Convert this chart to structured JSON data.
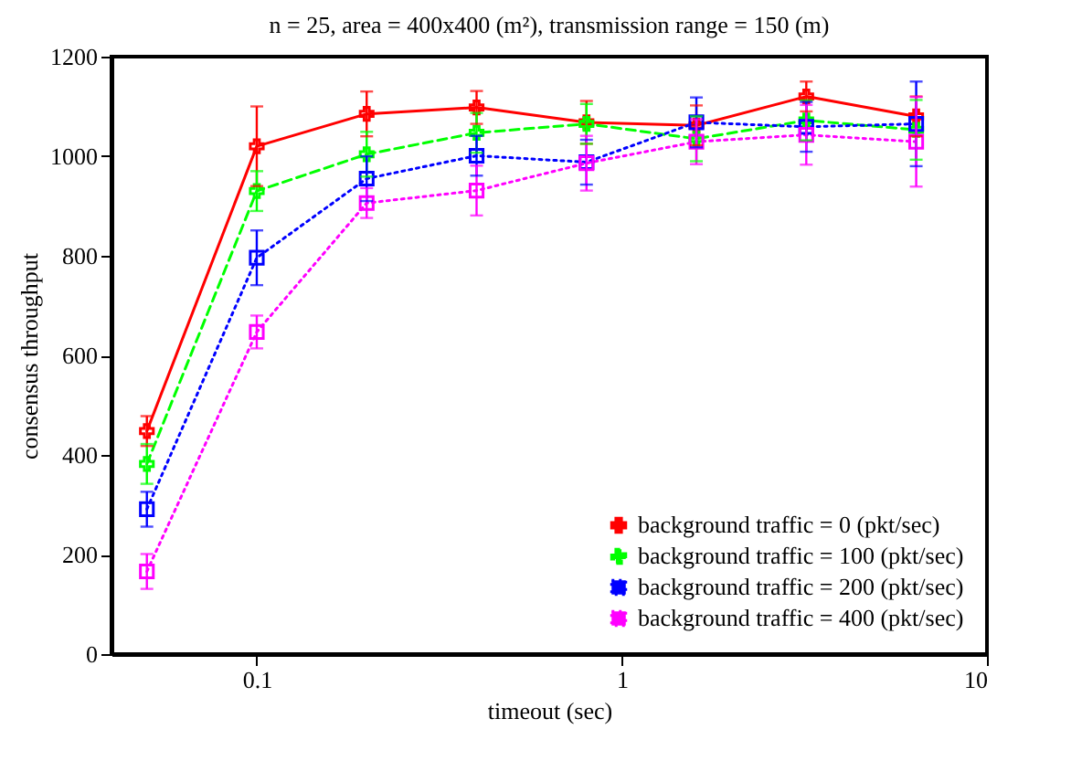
{
  "chart_data": {
    "type": "line",
    "title": "n = 25, area = 400x400 (m²), transmission range = 150 (m)",
    "xlabel": "timeout (sec)",
    "ylabel": "consensus throughput",
    "x": [
      0.05,
      0.1,
      0.2,
      0.4,
      0.8,
      1.6,
      3.2,
      6.4
    ],
    "series": [
      {
        "name": "background traffic = 0 (pkt/sec)",
        "color": "#ff0000",
        "marker": "cross",
        "line_style": "solid",
        "values": [
          448,
          1020,
          1085,
          1098,
          1068,
          1062,
          1120,
          1080
        ],
        "errors": [
          30,
          80,
          45,
          33,
          43,
          40,
          30,
          40
        ]
      },
      {
        "name": "background traffic = 100 (pkt/sec)",
        "color": "#00ff00",
        "marker": "cross",
        "line_style": "dashed",
        "values": [
          382,
          930,
          1004,
          1047,
          1065,
          1035,
          1072,
          1053
        ],
        "errors": [
          40,
          40,
          45,
          40,
          40,
          45,
          40,
          60
        ]
      },
      {
        "name": "background traffic = 200 (pkt/sec)",
        "color": "#0000ff",
        "marker": "square",
        "line_style": "dotted",
        "values": [
          291,
          796,
          955,
          1001,
          988,
          1068,
          1059,
          1065
        ],
        "errors": [
          35,
          55,
          45,
          40,
          45,
          50,
          50,
          85
        ]
      },
      {
        "name": "background traffic = 400 (pkt/sec)",
        "color": "#ff00ff",
        "marker": "square",
        "line_style": "dotted",
        "values": [
          166,
          647,
          906,
          931,
          986,
          1029,
          1043,
          1029
        ],
        "errors": [
          35,
          33,
          30,
          50,
          55,
          45,
          60,
          90
        ]
      }
    ],
    "log": "x",
    "xlim": [
      0.04,
      10
    ],
    "xticks": [
      0.1,
      1,
      10
    ],
    "ylim": [
      0,
      1200
    ],
    "yticks": [
      0,
      200,
      400,
      600,
      800,
      1000,
      1200
    ],
    "grid": false,
    "legend": "bottom right"
  }
}
